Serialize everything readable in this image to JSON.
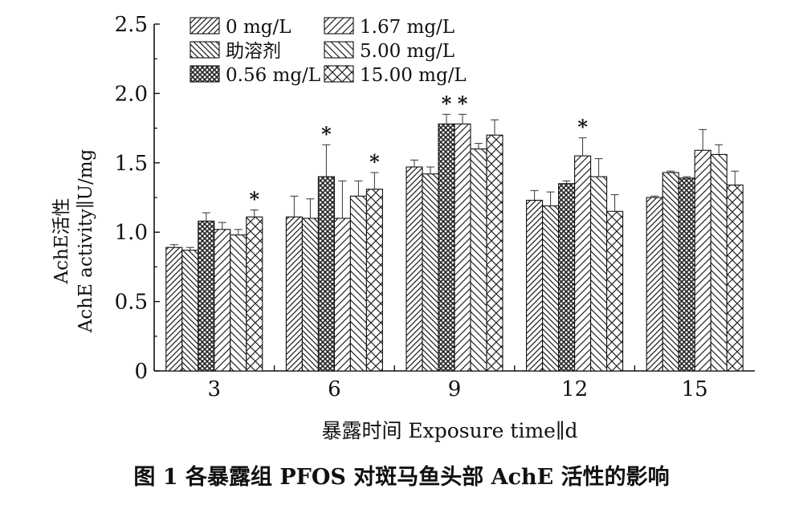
{
  "caption": "图 1   各暴露组 PFOS 对斑马鱼头部 AchE 活性的影响",
  "chart_data": {
    "type": "bar",
    "xlabel": "暴露时间 Exposure time∥d",
    "ylabel_line1": "AchE活性",
    "ylabel_line2": "AchE activity∥U/mg",
    "ylim": [
      0,
      2.5
    ],
    "yticks": [
      "0",
      "0.5",
      "1.0",
      "1.5",
      "2.0",
      "2.5"
    ],
    "categories": [
      "3",
      "6",
      "9",
      "12",
      "15"
    ],
    "legend_position": "top-left",
    "grid": false,
    "series": [
      {
        "name": "0 mg/L",
        "pattern": "diag-up",
        "values": [
          0.89,
          1.11,
          1.47,
          1.23,
          1.25
        ],
        "errors": [
          0.02,
          0.15,
          0.05,
          0.07,
          0.01
        ],
        "significant": [
          false,
          false,
          false,
          false,
          false
        ]
      },
      {
        "name": "助溶剂",
        "pattern": "diag-down",
        "values": [
          0.87,
          1.1,
          1.42,
          1.19,
          1.43
        ],
        "errors": [
          0.02,
          0.14,
          0.05,
          0.1,
          0.01
        ],
        "significant": [
          false,
          false,
          false,
          false,
          false
        ]
      },
      {
        "name": "0.56 mg/L",
        "pattern": "dense-cross",
        "values": [
          1.08,
          1.4,
          1.78,
          1.35,
          1.39
        ],
        "errors": [
          0.06,
          0.23,
          0.07,
          0.02,
          0.01
        ],
        "significant": [
          false,
          true,
          true,
          false,
          false
        ]
      },
      {
        "name": "1.67 mg/L",
        "pattern": "diag-up-2",
        "values": [
          1.02,
          1.1,
          1.78,
          1.55,
          1.59
        ],
        "errors": [
          0.05,
          0.27,
          0.07,
          0.13,
          0.15
        ],
        "significant": [
          false,
          false,
          true,
          true,
          false
        ]
      },
      {
        "name": "5.00 mg/L",
        "pattern": "diag-down-2",
        "values": [
          0.98,
          1.26,
          1.6,
          1.4,
          1.56
        ],
        "errors": [
          0.04,
          0.11,
          0.04,
          0.13,
          0.07
        ],
        "significant": [
          false,
          false,
          false,
          false,
          false
        ]
      },
      {
        "name": "15.00 mg/L",
        "pattern": "open-cross",
        "values": [
          1.11,
          1.31,
          1.7,
          1.15,
          1.34
        ],
        "errors": [
          0.05,
          0.12,
          0.11,
          0.12,
          0.1
        ],
        "significant": [
          true,
          true,
          false,
          false,
          false
        ]
      }
    ],
    "significance_marker": "*"
  }
}
